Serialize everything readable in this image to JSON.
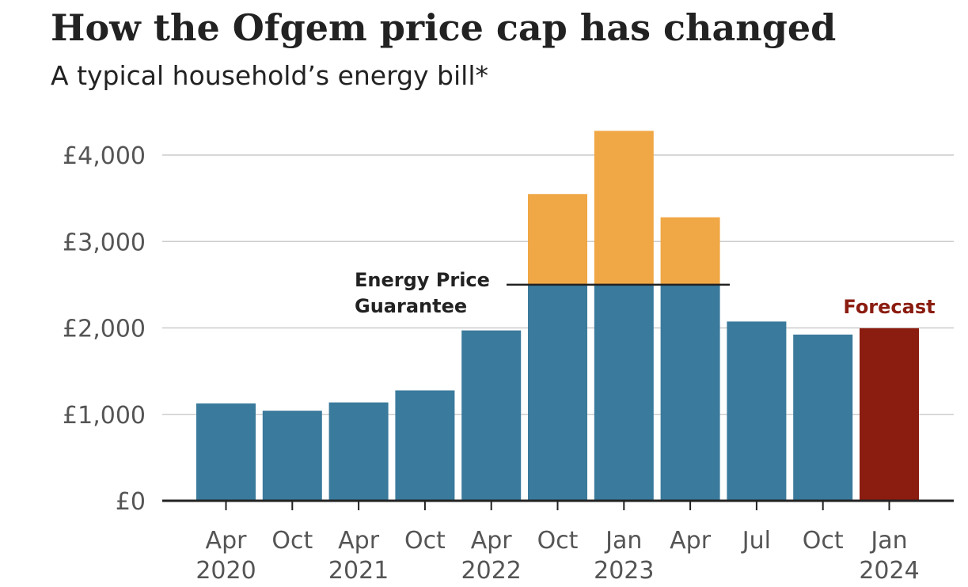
{
  "title": "How the Ofgem price cap has changed",
  "subtitle": "A typical household’s energy bill*",
  "chart_data": {
    "type": "bar",
    "stacked": true,
    "categories": [
      {
        "month": "Apr",
        "year": "2020"
      },
      {
        "month": "Oct",
        "year": ""
      },
      {
        "month": "Apr",
        "year": "2021"
      },
      {
        "month": "Oct",
        "year": ""
      },
      {
        "month": "Apr",
        "year": "2022"
      },
      {
        "month": "Oct",
        "year": ""
      },
      {
        "month": "Jan",
        "year": "2023"
      },
      {
        "month": "Apr",
        "year": ""
      },
      {
        "month": "Jul",
        "year": ""
      },
      {
        "month": "Oct",
        "year": ""
      },
      {
        "month": "Jan",
        "year": "2024"
      }
    ],
    "series": [
      {
        "values": [
          1126,
          1042,
          1138,
          1277,
          1971,
          2500,
          2500,
          2500,
          2074,
          1923,
          1996
        ],
        "color": "#3a7a9c",
        "forecast_color": "#8b1c10"
      },
      {
        "values": [
          0,
          0,
          0,
          0,
          0,
          1049,
          1780,
          780,
          0,
          0,
          0
        ],
        "color": "#f0a745"
      }
    ],
    "forecast_index": 10,
    "ylim": [
      0,
      4000
    ],
    "yticks": [
      0,
      1000,
      2000,
      3000,
      4000
    ],
    "ytick_labels": [
      "£0",
      "£1,000",
      "£2,000",
      "£3,000",
      "£4,000"
    ],
    "grid": true,
    "annotations": {
      "guarantee_line": {
        "value": 2500,
        "label_lines": [
          "Energy Price",
          "Guarantee"
        ]
      },
      "forecast_label": "Forecast"
    }
  },
  "colors": {
    "bar": "#3a7a9c",
    "cap_excess": "#f0a745",
    "forecast": "#8b1c10",
    "grid": "#cccccc",
    "axis": "#222222"
  }
}
